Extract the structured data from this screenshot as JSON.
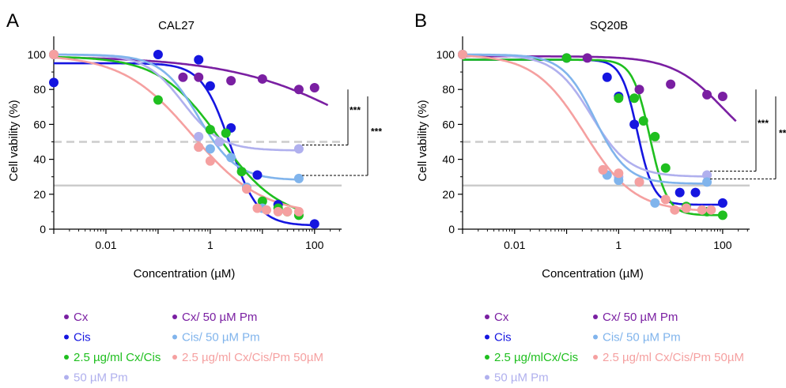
{
  "chart_data": [
    {
      "type": "scatter",
      "panel_label": "A",
      "title": "CAL27",
      "xlabel": "Concentration (µM)",
      "ylabel": "Cell vability (%)",
      "x_scale": "log",
      "xlim": [
        0.001,
        330
      ],
      "ylim": [
        0,
        110
      ],
      "x_ticks": [
        0.01,
        1,
        100
      ],
      "x_tick_labels": [
        "0.01",
        "1",
        "100"
      ],
      "y_ticks": [
        0,
        20,
        40,
        60,
        80,
        100
      ],
      "y_tick_labels": [
        "0",
        "20",
        "40",
        "60",
        "80",
        "100"
      ],
      "reference_lines": [
        {
          "y": 50,
          "style": "dashed",
          "color": "#cccccc"
        },
        {
          "y": 25,
          "style": "solid",
          "color": "#cccccc"
        }
      ],
      "significance": [
        {
          "label": "***",
          "from": "Cx/ 50 µM Pm",
          "to": "50 µM Pm"
        },
        {
          "label": "***",
          "from": "Cx/ 50 µM Pm",
          "to": "Cis/ 50 µM Pm"
        }
      ],
      "series": [
        {
          "name": "Cx",
          "color": "#7a1fa2",
          "points": [
            [
              0.001,
              100
            ],
            [
              0.3,
              87
            ],
            [
              0.6,
              87
            ],
            [
              2.5,
              85
            ],
            [
              10,
              86
            ],
            [
              50,
              80
            ],
            [
              100,
              81
            ]
          ],
          "curve": {
            "top": 99,
            "bottom": 20,
            "ec50": 1000,
            "hill": 0.35
          }
        },
        {
          "name": "Cis",
          "color": "#1515e0",
          "points": [
            [
              0.001,
              84
            ],
            [
              0.1,
              100
            ],
            [
              0.6,
              97
            ],
            [
              1,
              82
            ],
            [
              2.5,
              58
            ],
            [
              8,
              31
            ],
            [
              20,
              14
            ],
            [
              100,
              3
            ]
          ],
          "curve": {
            "top": 95,
            "bottom": 2,
            "ec50": 2.4,
            "hill": 1.6
          }
        },
        {
          "name": "2.5 µg/ml Cx/Cis",
          "color": "#1fbf1f",
          "points": [
            [
              0.001,
              100
            ],
            [
              0.1,
              74
            ],
            [
              1,
              57
            ],
            [
              2,
              55
            ],
            [
              4,
              33
            ],
            [
              10,
              16
            ],
            [
              20,
              12
            ],
            [
              30,
              10
            ],
            [
              50,
              8
            ]
          ],
          "curve": {
            "top": 99,
            "bottom": 5,
            "ec50": 1.5,
            "hill": 0.75
          }
        },
        {
          "name": "50 µM Pm",
          "color": "#b0b0ee",
          "points": [
            [
              0.001,
              100
            ],
            [
              0.6,
              53
            ],
            [
              1.5,
              50
            ],
            [
              50,
              46
            ]
          ],
          "curve": {
            "top": 100,
            "bottom": 45,
            "ec50": 0.3,
            "hill": 1.2
          }
        },
        {
          "name": "Cx/ 50 µM Pm",
          "color": "#7a1fa2",
          "points": [],
          "curve": null
        },
        {
          "name": "Cis/ 50 µM Pm",
          "color": "#80b4ec",
          "points": [
            [
              0.001,
              100
            ],
            [
              0.6,
              47
            ],
            [
              1,
              46
            ],
            [
              2.5,
              41
            ],
            [
              5,
              24
            ],
            [
              10,
              12
            ],
            [
              50,
              29
            ]
          ],
          "curve": {
            "top": 100,
            "bottom": 28,
            "ec50": 0.6,
            "hill": 1.2
          }
        },
        {
          "name": "2.5 µg/ml Cx/Cis/Pm 50µM",
          "color": "#f5a0a0",
          "points": [
            [
              0.001,
              100
            ],
            [
              0.6,
              47
            ],
            [
              1,
              39
            ],
            [
              5,
              23
            ],
            [
              8,
              12
            ],
            [
              12,
              11
            ],
            [
              20,
              10
            ],
            [
              30,
              10
            ],
            [
              50,
              10
            ]
          ],
          "curve": {
            "top": 100,
            "bottom": 8,
            "ec50": 0.45,
            "hill": 0.65
          }
        }
      ]
    },
    {
      "type": "scatter",
      "panel_label": "B",
      "title": "SQ20B",
      "xlabel": "Concentration (µM)",
      "ylabel": "Cell vability (%)",
      "x_scale": "log",
      "xlim": [
        0.001,
        330
      ],
      "ylim": [
        0,
        110
      ],
      "x_ticks": [
        0.01,
        1,
        100
      ],
      "x_tick_labels": [
        "0.01",
        "1",
        "100"
      ],
      "y_ticks": [
        0,
        20,
        40,
        60,
        80,
        100
      ],
      "y_tick_labels": [
        "0",
        "20",
        "40",
        "60",
        "80",
        "100"
      ],
      "reference_lines": [
        {
          "y": 50,
          "style": "dashed",
          "color": "#cccccc"
        },
        {
          "y": 25,
          "style": "solid",
          "color": "#cccccc"
        }
      ],
      "significance": [
        {
          "label": "***",
          "from": "Cx/ 50 µM Pm",
          "to": "50 µM Pm"
        },
        {
          "label": "***",
          "from": "Cx/ 50 µM Pm",
          "to": "Cis/ 50 µM Pm"
        }
      ],
      "series": [
        {
          "name": "Cx",
          "color": "#7a1fa2",
          "points": [
            [
              0.001,
              100
            ],
            [
              0.25,
              98
            ],
            [
              2.5,
              80
            ],
            [
              10,
              83
            ],
            [
              50,
              77
            ],
            [
              100,
              76
            ]
          ],
          "curve": {
            "top": 99,
            "bottom": 40,
            "ec50": 100,
            "hill": 0.9
          }
        },
        {
          "name": "Cis",
          "color": "#1515e0",
          "points": [
            [
              0.001,
              100
            ],
            [
              0.1,
              98
            ],
            [
              0.6,
              87
            ],
            [
              1,
              76
            ],
            [
              2,
              60
            ],
            [
              15,
              21
            ],
            [
              30,
              21
            ],
            [
              100,
              15
            ]
          ],
          "curve": {
            "top": 97,
            "bottom": 14,
            "ec50": 2.3,
            "hill": 2.8
          }
        },
        {
          "name": "2.5 µg/ml Cx/Cis",
          "color": "#1fbf1f",
          "points": [
            [
              0.001,
              100
            ],
            [
              0.1,
              98
            ],
            [
              1,
              75
            ],
            [
              2,
              75
            ],
            [
              3,
              62
            ],
            [
              5,
              53
            ],
            [
              8,
              35
            ],
            [
              20,
              13
            ],
            [
              50,
              10
            ],
            [
              100,
              8
            ]
          ],
          "curve": {
            "top": 97,
            "bottom": 8,
            "ec50": 4.0,
            "hill": 2.6
          }
        },
        {
          "name": "50 µM Pm",
          "color": "#b0b0ee",
          "points": [
            [
              0.001,
              100
            ],
            [
              0.5,
              34
            ],
            [
              1,
              30
            ],
            [
              50,
              31
            ]
          ],
          "curve": {
            "top": 100,
            "bottom": 30,
            "ec50": 0.3,
            "hill": 1.2
          }
        },
        {
          "name": "Cx/ 50 µM Pm",
          "color": "#7a1fa2",
          "points": [],
          "curve": null
        },
        {
          "name": "Cis/ 50 µM Pm",
          "color": "#80b4ec",
          "points": [
            [
              0.001,
              100
            ],
            [
              0.6,
              31
            ],
            [
              1,
              28
            ],
            [
              2.5,
              27
            ],
            [
              5,
              15
            ],
            [
              20,
              12
            ],
            [
              50,
              27
            ]
          ],
          "curve": {
            "top": 100,
            "bottom": 26,
            "ec50": 0.35,
            "hill": 1.4
          }
        },
        {
          "name": "2.5 µg/ml Cx/Cis/Pm 50µM",
          "color": "#f5a0a0",
          "points": [
            [
              0.001,
              100
            ],
            [
              0.5,
              34
            ],
            [
              1,
              32
            ],
            [
              2.5,
              27
            ],
            [
              8,
              17
            ],
            [
              12,
              11
            ],
            [
              20,
              12
            ],
            [
              40,
              11
            ],
            [
              60,
              11
            ]
          ],
          "curve": {
            "top": 100,
            "bottom": 10,
            "ec50": 0.22,
            "hill": 0.9
          }
        }
      ]
    }
  ],
  "legends": [
    {
      "columns": [
        [
          {
            "label": "Cx",
            "color": "#7a1fa2"
          },
          {
            "label": "Cis",
            "color": "#1515e0"
          },
          {
            "label": "2.5 µg/ml Cx/Cis",
            "color": "#1fbf1f"
          },
          {
            "label": "50 µM Pm",
            "color": "#b0b0ee"
          }
        ],
        [
          {
            "label": "Cx/ 50 µM Pm",
            "color": "#7a1fa2"
          },
          {
            "label": "Cis/ 50 µM Pm",
            "color": "#80b4ec"
          },
          {
            "label": "2.5 µg/ml Cx/Cis/Pm 50µM",
            "color": "#f5a0a0"
          }
        ]
      ]
    },
    {
      "columns": [
        [
          {
            "label": "Cx",
            "color": "#7a1fa2"
          },
          {
            "label": "Cis",
            "color": "#1515e0"
          },
          {
            "label": "2.5 µg/mlCx/Cis",
            "color": "#1fbf1f"
          },
          {
            "label": "50 µM Pm",
            "color": "#b0b0ee"
          }
        ],
        [
          {
            "label": "Cx/ 50 µM Pm",
            "color": "#7a1fa2"
          },
          {
            "label": "Cis/ 50 µM Pm",
            "color": "#80b4ec"
          },
          {
            "label": "2.5 µg/ml Cx/Cis/Pm 50µM",
            "color": "#f5a0a0"
          }
        ]
      ]
    }
  ]
}
